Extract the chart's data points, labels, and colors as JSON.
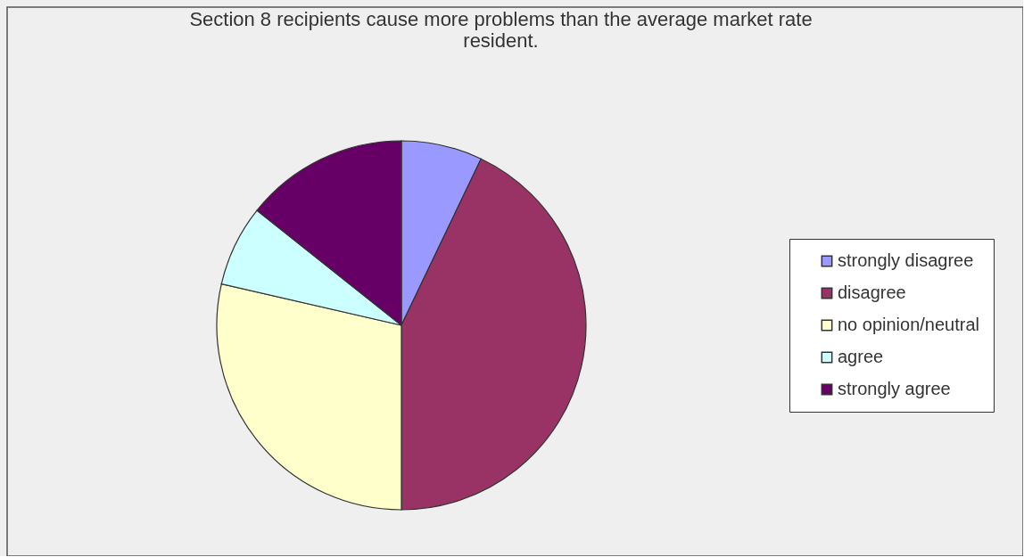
{
  "chart_data": {
    "type": "pie",
    "title": "Section 8 recipients cause more problems than the average market rate resident.",
    "categories": [
      "strongly disagree",
      "disagree",
      "no opinion/neutral",
      "agree",
      "strongly agree"
    ],
    "values": [
      7.1,
      42.9,
      28.6,
      7.1,
      14.3
    ],
    "colors": [
      "#9999ff",
      "#993366",
      "#ffffcc",
      "#ccffff",
      "#660066"
    ],
    "legend": "right"
  }
}
